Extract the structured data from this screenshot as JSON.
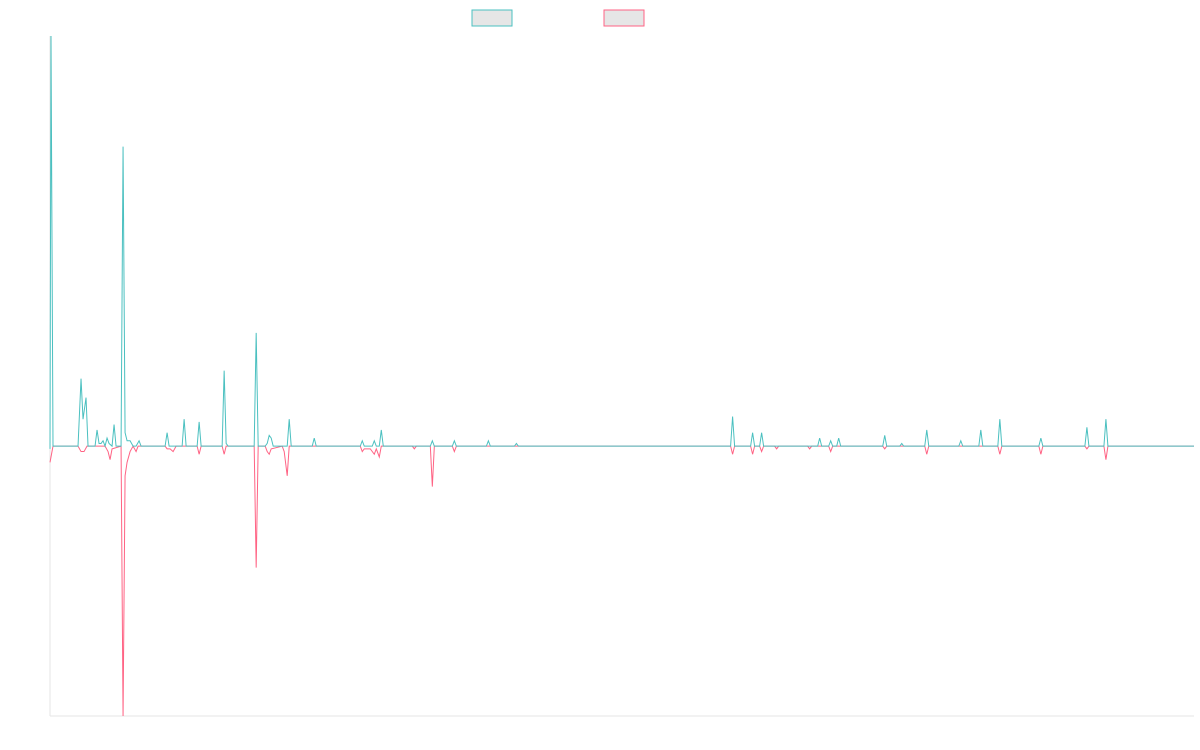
{
  "colors": {
    "series_1": "#4bc0c0",
    "series_2": "#ff6384",
    "axis": "#e6e6e6",
    "legend_fill": "#e6e6e6"
  },
  "legend": {
    "items": [
      {
        "series": 0,
        "label": ""
      },
      {
        "series": 1,
        "label": ""
      }
    ],
    "position": "top"
  },
  "chart_data": {
    "type": "line",
    "title": "",
    "xlabel": "",
    "ylabel": "",
    "grid": false,
    "ylim": [
      -100,
      152
    ],
    "xlim": [
      0,
      1143
    ],
    "series": [
      {
        "color": "#4bc0c0",
        "points": [
          [
            0,
            -1
          ],
          [
            1,
            152
          ],
          [
            3,
            0
          ],
          [
            28,
            0
          ],
          [
            31,
            25
          ],
          [
            33,
            10
          ],
          [
            36,
            18
          ],
          [
            38,
            0
          ],
          [
            45,
            0
          ],
          [
            47,
            6
          ],
          [
            49,
            1
          ],
          [
            51,
            1
          ],
          [
            53,
            2
          ],
          [
            55,
            0
          ],
          [
            57,
            3
          ],
          [
            59,
            1
          ],
          [
            62,
            0
          ],
          [
            64,
            8
          ],
          [
            66,
            0
          ],
          [
            71,
            0
          ],
          [
            73,
            111
          ],
          [
            75,
            5
          ],
          [
            77,
            2
          ],
          [
            80,
            2
          ],
          [
            83,
            0
          ],
          [
            86,
            0
          ],
          [
            89,
            2
          ],
          [
            91,
            0
          ],
          [
            115,
            0
          ],
          [
            117,
            5
          ],
          [
            119,
            0
          ],
          [
            132,
            0
          ],
          [
            134,
            10
          ],
          [
            136,
            0
          ],
          [
            147,
            0
          ],
          [
            149,
            9
          ],
          [
            151,
            0
          ],
          [
            172,
            0
          ],
          [
            174,
            28
          ],
          [
            176,
            1
          ],
          [
            178,
            0
          ],
          [
            204,
            0
          ],
          [
            206,
            42
          ],
          [
            208,
            0
          ],
          [
            215,
            0
          ],
          [
            217,
            1
          ],
          [
            219,
            4
          ],
          [
            221,
            3
          ],
          [
            223,
            0
          ],
          [
            237,
            0
          ],
          [
            239,
            10
          ],
          [
            241,
            0
          ],
          [
            262,
            0
          ],
          [
            264,
            3
          ],
          [
            266,
            0
          ],
          [
            310,
            0
          ],
          [
            312,
            2
          ],
          [
            314,
            0
          ],
          [
            322,
            0
          ],
          [
            324,
            2
          ],
          [
            326,
            0
          ],
          [
            329,
            0
          ],
          [
            331,
            6
          ],
          [
            333,
            0
          ],
          [
            380,
            0
          ],
          [
            382,
            2
          ],
          [
            384,
            0
          ],
          [
            402,
            0
          ],
          [
            404,
            2
          ],
          [
            406,
            0
          ],
          [
            436,
            0
          ],
          [
            438,
            2
          ],
          [
            440,
            0
          ],
          [
            464,
            0
          ],
          [
            466,
            1
          ],
          [
            468,
            0
          ],
          [
            680,
            0
          ],
          [
            682,
            11
          ],
          [
            684,
            0
          ],
          [
            700,
            0
          ],
          [
            702,
            5
          ],
          [
            704,
            0
          ],
          [
            709,
            0
          ],
          [
            711,
            5
          ],
          [
            713,
            0
          ],
          [
            767,
            0
          ],
          [
            769,
            3
          ],
          [
            771,
            0
          ],
          [
            778,
            0
          ],
          [
            780,
            2
          ],
          [
            782,
            0
          ],
          [
            786,
            0
          ],
          [
            788,
            3
          ],
          [
            790,
            0
          ],
          [
            832,
            0
          ],
          [
            834,
            4
          ],
          [
            836,
            0
          ],
          [
            849,
            0
          ],
          [
            851,
            1
          ],
          [
            853,
            0
          ],
          [
            874,
            0
          ],
          [
            876,
            6
          ],
          [
            878,
            0
          ],
          [
            908,
            0
          ],
          [
            910,
            2
          ],
          [
            912,
            0
          ],
          [
            928,
            0
          ],
          [
            930,
            6
          ],
          [
            932,
            0
          ],
          [
            947,
            0
          ],
          [
            949,
            10
          ],
          [
            951,
            0
          ],
          [
            988,
            0
          ],
          [
            990,
            3
          ],
          [
            992,
            0
          ],
          [
            1034,
            0
          ],
          [
            1036,
            7
          ],
          [
            1038,
            0
          ],
          [
            1053,
            0
          ],
          [
            1055,
            10
          ],
          [
            1057,
            0
          ],
          [
            1143,
            0
          ]
        ]
      },
      {
        "color": "#ff6384",
        "points": [
          [
            0,
            -6
          ],
          [
            3,
            0
          ],
          [
            28,
            0
          ],
          [
            31,
            -2
          ],
          [
            34,
            -2
          ],
          [
            37,
            0
          ],
          [
            55,
            0
          ],
          [
            58,
            -2
          ],
          [
            60,
            -5
          ],
          [
            62,
            -1
          ],
          [
            71,
            0
          ],
          [
            73,
            -100
          ],
          [
            75,
            -11
          ],
          [
            77,
            -6
          ],
          [
            80,
            -2
          ],
          [
            83,
            0
          ],
          [
            86,
            -2
          ],
          [
            88,
            0
          ],
          [
            115,
            0
          ],
          [
            117,
            -1
          ],
          [
            120,
            -1
          ],
          [
            123,
            -2
          ],
          [
            126,
            0
          ],
          [
            147,
            0
          ],
          [
            149,
            -3
          ],
          [
            151,
            0
          ],
          [
            172,
            0
          ],
          [
            174,
            -3
          ],
          [
            176,
            0
          ],
          [
            204,
            0
          ],
          [
            206,
            -45
          ],
          [
            208,
            0
          ],
          [
            215,
            0
          ],
          [
            217,
            -2
          ],
          [
            219,
            -3
          ],
          [
            221,
            -1
          ],
          [
            232,
            0
          ],
          [
            234,
            -2
          ],
          [
            237,
            -11
          ],
          [
            239,
            0
          ],
          [
            310,
            0
          ],
          [
            312,
            -2
          ],
          [
            314,
            -1
          ],
          [
            316,
            -1
          ],
          [
            320,
            -1
          ],
          [
            324,
            -3
          ],
          [
            326,
            -1
          ],
          [
            329,
            -4
          ],
          [
            331,
            0
          ],
          [
            362,
            0
          ],
          [
            364,
            -1
          ],
          [
            366,
            0
          ],
          [
            380,
            0
          ],
          [
            382,
            -15
          ],
          [
            384,
            0
          ],
          [
            402,
            0
          ],
          [
            404,
            -2
          ],
          [
            406,
            0
          ],
          [
            680,
            0
          ],
          [
            682,
            -3
          ],
          [
            684,
            0
          ],
          [
            700,
            0
          ],
          [
            702,
            -3
          ],
          [
            704,
            0
          ],
          [
            709,
            0
          ],
          [
            711,
            -2
          ],
          [
            713,
            0
          ],
          [
            724,
            0
          ],
          [
            726,
            -1
          ],
          [
            728,
            0
          ],
          [
            757,
            0
          ],
          [
            759,
            -1
          ],
          [
            761,
            0
          ],
          [
            778,
            0
          ],
          [
            780,
            -2
          ],
          [
            782,
            0
          ],
          [
            832,
            0
          ],
          [
            834,
            -1
          ],
          [
            836,
            0
          ],
          [
            874,
            0
          ],
          [
            876,
            -3
          ],
          [
            878,
            0
          ],
          [
            947,
            0
          ],
          [
            949,
            -3
          ],
          [
            951,
            0
          ],
          [
            988,
            0
          ],
          [
            990,
            -3
          ],
          [
            992,
            0
          ],
          [
            1034,
            0
          ],
          [
            1036,
            -1
          ],
          [
            1038,
            0
          ],
          [
            1053,
            0
          ],
          [
            1055,
            -5
          ],
          [
            1057,
            0
          ],
          [
            1143,
            0
          ]
        ]
      }
    ]
  }
}
